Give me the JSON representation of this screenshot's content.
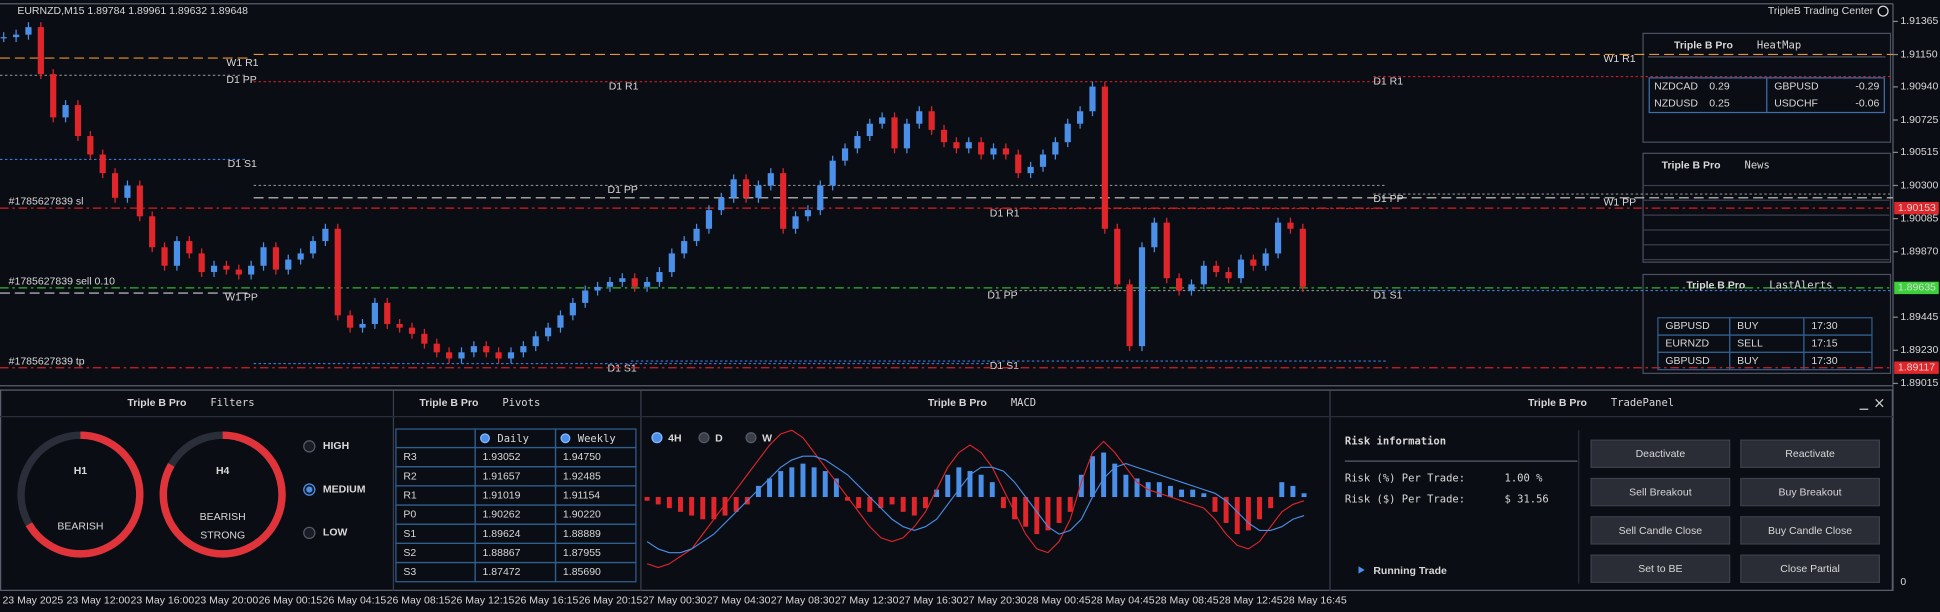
{
  "header": {
    "symbol_info": "EURNZD,M15  1.89784 1.89961 1.89632 1.89648",
    "brand": "TripleB Trading Center"
  },
  "chart_data": {
    "type": "candlestick",
    "values": [
      1.91263,
      1.91279,
      1.91328,
      1.91023,
      1.90742,
      1.90822,
      1.90621,
      1.90501,
      1.9038,
      1.9022,
      1.903,
      1.901,
      1.89899,
      1.89779,
      1.89939,
      1.89859,
      1.89738,
      1.89779,
      1.89754,
      1.89722,
      1.89779,
      1.89899,
      1.89754,
      1.89819,
      1.89859,
      1.89939,
      1.90019,
      1.89457,
      1.89377,
      1.89401,
      1.89538,
      1.89401,
      1.89377,
      1.89337,
      1.89273,
      1.89217,
      1.89177,
      1.89217,
      1.89257,
      1.89217,
      1.89177,
      1.89217,
      1.89257,
      1.89321,
      1.89377,
      1.89457,
      1.89538,
      1.89618,
      1.89642,
      1.89674,
      1.89698,
      1.89642,
      1.89674,
      1.89738,
      1.89859,
      1.89939,
      1.90019,
      1.9014,
      1.9022,
      1.9034,
      1.9022,
      1.903,
      1.9038,
      1.90019,
      1.901,
      1.9014,
      1.903,
      1.90461,
      1.90541,
      1.90621,
      1.90701,
      1.90742,
      1.90541,
      1.90701,
      1.90782,
      1.90661,
      1.90581,
      1.90541,
      1.90581,
      1.90501,
      1.90541,
      1.90501,
      1.9038,
      1.90421,
      1.90501,
      1.90581,
      1.90701,
      1.90782,
      1.90942,
      1.90019,
      1.89658,
      1.89257,
      1.89899,
      1.90059,
      1.89698,
      1.89618,
      1.89658,
      1.89779,
      1.89738,
      1.89698,
      1.89819,
      1.89779,
      1.89859,
      1.90059,
      1.90019,
      1.89642
    ],
    "up_color": "#4a8fe8",
    "down_color": "#e0262a",
    "ylim": [
      1.89,
      1.9148
    ],
    "yticks": [
      1.91365,
      {
        "value": 1.9115,
        "label": "1.91150"
      },
      {
        "value": 1.9094,
        "label": "1.90940"
      },
      1.90725,
      1.90515,
      {
        "value": 1.903,
        "label": "1.90300"
      },
      1.90085,
      {
        "value": 1.8987,
        "label": "1.89870"
      },
      1.89445,
      {
        "value": 1.8923,
        "label": "1.89230"
      },
      1.89015
    ],
    "x_labels": [
      "23 May 2025",
      "23 May 12:00",
      "23 May 16:00",
      "23 May 20:00",
      "26 May 00:15",
      "26 May 04:15",
      "26 May 08:15",
      "26 May 12:15",
      "26 May 16:15",
      "26 May 20:15",
      "27 May 00:30",
      "27 May 04:30",
      "27 May 08:30",
      "27 May 12:30",
      "27 May 16:30",
      "27 May 20:30",
      "28 May 00:45",
      "28 May 04:45",
      "28 May 08:45",
      "28 May 12:45",
      "28 May 16:45"
    ],
    "price_tags": [
      {
        "value": 1.90153,
        "color": "#e0262a"
      },
      {
        "value": 1.89635,
        "color": "#3ad13a"
      },
      {
        "value": 1.89117,
        "color": "#e0262a"
      }
    ],
    "orders": [
      {
        "label": "#1785627839 sl",
        "value": 1.90153,
        "color": "#d81e1e"
      },
      {
        "label": "#1785627839 sell 0.10",
        "value": 1.89635,
        "color": "#2eb82e"
      },
      {
        "label": "#1785627839 tp",
        "value": 1.89117,
        "color": "#d81e1e"
      }
    ],
    "levels": [
      {
        "label": "W1 R1",
        "value": 1.91127,
        "color": "#e8952a",
        "style": "dashed"
      },
      {
        "label": "W1 R1",
        "value": 1.91151,
        "color": "#e8952a",
        "style": "dashed"
      },
      {
        "label": "D1 PP",
        "value": 1.91015,
        "color": "#8a8a8a",
        "style": "dotted"
      },
      {
        "label": "D1 R1",
        "value": 1.90974,
        "color": "#c81e1e",
        "style": "dotted"
      },
      {
        "label": "D1 R1",
        "value": 1.91007,
        "color": "#c81e1e",
        "style": "dotted"
      },
      {
        "label": "D1 S1",
        "value": 1.90469,
        "color": "#3c78d8",
        "style": "dotted"
      },
      {
        "label": "D1 PP",
        "value": 1.903,
        "color": "#8a8a8a",
        "style": "dotted"
      },
      {
        "label": "W1 PP",
        "value": 1.9022,
        "color": "#d0d0d0",
        "style": "dashed"
      },
      {
        "label": "D1 PP",
        "value": 1.90244,
        "color": "#8a8a8a",
        "style": "dotted"
      },
      {
        "label": "D1 R1",
        "value": 1.9015,
        "color": "#c81e1e",
        "style": "dotted"
      },
      {
        "label": "W1 PP",
        "value": 1.89602,
        "color": "#d0d0d0",
        "style": "dashed"
      },
      {
        "label": "D1 PP",
        "value": 1.89618,
        "color": "#8a8a8a",
        "style": "dotted"
      },
      {
        "label": "D1 S1",
        "value": 1.89618,
        "color": "#3c78d8",
        "style": "dotted"
      },
      {
        "label": "D1 S1",
        "value": 1.89144,
        "color": "#3c78d8",
        "style": "dotted"
      },
      {
        "label": "D1 S1",
        "value": 1.8916,
        "color": "#3c78d8",
        "style": "dotted"
      }
    ]
  },
  "heatmap": {
    "brand": "Triple B Pro",
    "title": "HeatMap",
    "rows": [
      [
        "NZDCAD",
        "0.29",
        "GBPUSD",
        "-0.29"
      ],
      [
        "NZDUSD",
        "0.25",
        "USDCHF",
        "-0.06"
      ]
    ],
    "column_colors": [
      "#4a90e2",
      "#4a90e2",
      "#e0262a",
      "#e0262a"
    ]
  },
  "news": {
    "brand": "Triple B Pro",
    "title": "News"
  },
  "last_alerts": {
    "brand": "Triple B Pro",
    "title": "LastAlerts",
    "rows": [
      [
        "GBPUSD",
        "BUY",
        "17:30"
      ],
      [
        "EURNZD",
        "SELL",
        "17:15"
      ],
      [
        "GBPUSD",
        "BUY",
        "17:30"
      ]
    ],
    "row_colors": [
      "#4a90e2",
      "#e0262a",
      "#4a90e2"
    ]
  },
  "filters": {
    "brand": "Triple B Pro",
    "title": "Filters",
    "gauges": [
      {
        "timeframe": "H1",
        "signal_lines": [
          "BEARISH"
        ]
      },
      {
        "timeframe": "H4",
        "signal_lines": [
          "BEARISH",
          "STRONG"
        ]
      }
    ],
    "levels": [
      "HIGH",
      "MEDIUM",
      "LOW"
    ],
    "selected_level": 1
  },
  "pivots": {
    "brand": "Triple B Pro",
    "title": "Pivots",
    "columns": [
      "Daily",
      "Weekly"
    ],
    "rows": [
      [
        "R3",
        "1.93052",
        "1.94750"
      ],
      [
        "R2",
        "1.91657",
        "1.92485"
      ],
      [
        "R1",
        "1.91019",
        "1.91154"
      ],
      [
        "P0",
        "1.90262",
        "1.90220"
      ],
      [
        "S1",
        "1.89624",
        "1.88889"
      ],
      [
        "S2",
        "1.88867",
        "1.87955"
      ],
      [
        "S3",
        "1.87472",
        "1.85690"
      ]
    ],
    "row_colors": [
      "#ff4a4a",
      "#ff4a4a",
      "#ff4a4a",
      "#e8e8e8",
      "#5a9cff",
      "#5a9cff",
      "#5a9cff"
    ]
  },
  "macd": {
    "brand": "Triple B Pro",
    "title": "MACD",
    "timeframes": [
      "4H",
      "D",
      "W"
    ],
    "selected": 0,
    "axis_label": "0",
    "ylim": [
      -1,
      1
    ],
    "histogram": [
      -0.05,
      -0.1,
      -0.15,
      -0.2,
      -0.25,
      -0.3,
      -0.3,
      -0.25,
      -0.2,
      -0.1,
      0.15,
      0.25,
      0.35,
      0.4,
      0.45,
      0.4,
      0.35,
      0.25,
      -0.05,
      -0.15,
      -0.2,
      -0.15,
      -0.1,
      -0.2,
      -0.25,
      -0.15,
      0.1,
      0.3,
      0.4,
      0.35,
      0.3,
      0.2,
      -0.15,
      -0.3,
      -0.4,
      -0.5,
      -0.45,
      -0.35,
      -0.2,
      0.3,
      0.55,
      0.6,
      0.45,
      0.3,
      0.25,
      0.2,
      0.2,
      0.15,
      0.1,
      0.1,
      0.05,
      -0.2,
      -0.35,
      -0.5,
      -0.45,
      -0.3,
      -0.15,
      0.2,
      0.15,
      0.05
    ],
    "series": [
      {
        "color": "#e0262a",
        "values": [
          -0.9,
          -0.95,
          -0.9,
          -0.8,
          -0.7,
          -0.5,
          -0.3,
          -0.1,
          0.1,
          0.3,
          0.5,
          0.7,
          0.85,
          0.9,
          0.8,
          0.6,
          0.4,
          0.2,
          0.0,
          -0.2,
          -0.4,
          -0.55,
          -0.6,
          -0.55,
          -0.4,
          -0.2,
          0.1,
          0.4,
          0.6,
          0.7,
          0.6,
          0.4,
          0.1,
          -0.2,
          -0.5,
          -0.7,
          -0.75,
          -0.6,
          -0.3,
          0.2,
          0.6,
          0.75,
          0.6,
          0.4,
          0.2,
          0.1,
          0.05,
          0,
          -0.05,
          -0.1,
          -0.15,
          -0.3,
          -0.5,
          -0.65,
          -0.7,
          -0.6,
          -0.4,
          -0.2,
          -0.1,
          -0.05
        ]
      },
      {
        "color": "#4a8fe8",
        "values": [
          -0.6,
          -0.7,
          -0.75,
          -0.75,
          -0.7,
          -0.6,
          -0.5,
          -0.35,
          -0.2,
          -0.05,
          0.1,
          0.25,
          0.4,
          0.5,
          0.55,
          0.55,
          0.5,
          0.4,
          0.3,
          0.15,
          0,
          -0.15,
          -0.3,
          -0.4,
          -0.45,
          -0.4,
          -0.3,
          -0.1,
          0.1,
          0.3,
          0.4,
          0.4,
          0.35,
          0.2,
          0,
          -0.2,
          -0.4,
          -0.5,
          -0.45,
          -0.3,
          0,
          0.25,
          0.4,
          0.45,
          0.4,
          0.35,
          0.3,
          0.25,
          0.2,
          0.15,
          0.1,
          0.05,
          -0.05,
          -0.2,
          -0.35,
          -0.45,
          -0.45,
          -0.4,
          -0.3,
          -0.25
        ]
      }
    ],
    "pos_color": "#4a8fe8",
    "neg_color": "#e0262a"
  },
  "trade_panel": {
    "brand": "Triple B Pro",
    "title": "TradePanel",
    "risk_title": "Risk information",
    "risk_rows": [
      {
        "label": "Risk (%) Per Trade:",
        "value": "1.00 %"
      },
      {
        "label": "Risk ($) Per Trade:",
        "value": "$ 31.56"
      }
    ],
    "buttons": [
      "Deactivate",
      "Reactivate",
      "Sell Breakout",
      "Buy Breakout",
      "Sell Candle Close",
      "Buy Candle Close",
      "Set to BE",
      "Close Partial"
    ],
    "running_trade": "Running Trade"
  }
}
